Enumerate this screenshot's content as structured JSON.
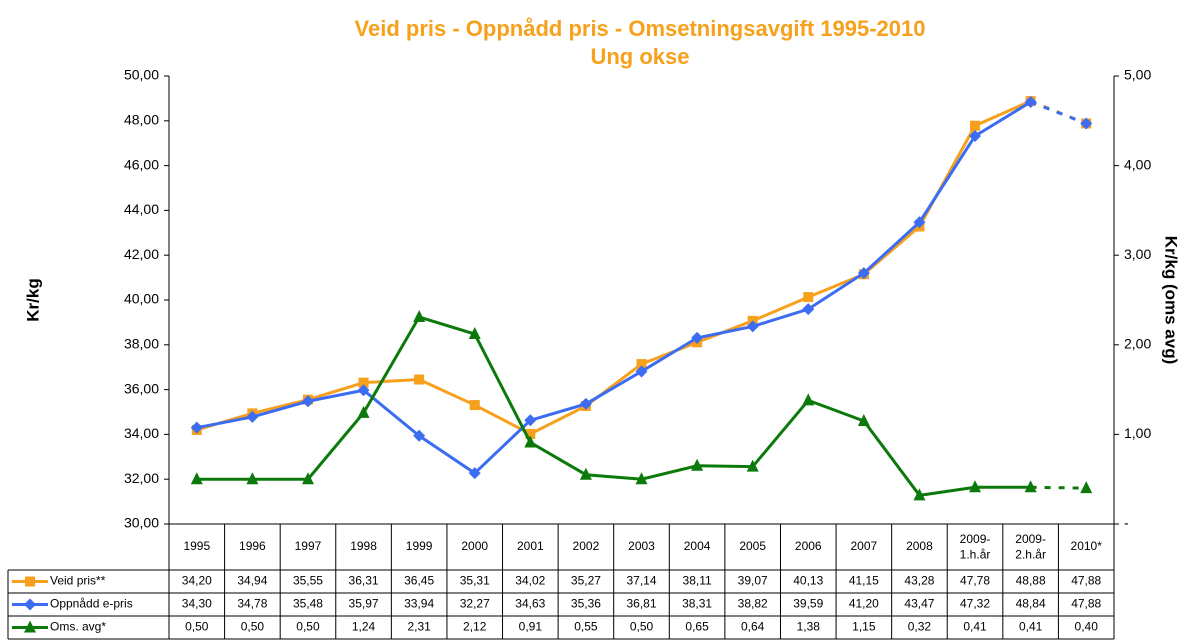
{
  "chart_data": {
    "type": "line",
    "title": "Veid pris - Oppnådd pris - Omsetningsavgift  1995-2010",
    "subtitle": "Ung okse",
    "y_label": "Kr/kg",
    "y2_label": "Kr/kg (oms avg)",
    "categories": [
      "1995",
      "1996",
      "1997",
      "1998",
      "1999",
      "2000",
      "2001",
      "2002",
      "2003",
      "2004",
      "2005",
      "2006",
      "2007",
      "2008",
      "2009-1.h.år",
      "2009-2.h.år",
      "2010*"
    ],
    "ylim": [
      30,
      50
    ],
    "yticks": [
      {
        "value": 30,
        "label": "30,00"
      },
      {
        "value": 32,
        "label": "32,00"
      },
      {
        "value": 34,
        "label": "34,00"
      },
      {
        "value": 36,
        "label": "36,00"
      },
      {
        "value": 38,
        "label": "38,00"
      },
      {
        "value": 40,
        "label": "40,00"
      },
      {
        "value": 42,
        "label": "42,00"
      },
      {
        "value": 44,
        "label": "44,00"
      },
      {
        "value": 46,
        "label": "46,00"
      },
      {
        "value": 48,
        "label": "48,00"
      },
      {
        "value": 50,
        "label": "50,00"
      }
    ],
    "y2lim": [
      0,
      5
    ],
    "y2ticks": [
      {
        "value": 0,
        "label": "-"
      },
      {
        "value": 1,
        "label": "1,00"
      },
      {
        "value": 2,
        "label": "2,00"
      },
      {
        "value": 3,
        "label": "3,00"
      },
      {
        "value": 4,
        "label": "4,00"
      },
      {
        "value": 5,
        "label": "5,00"
      }
    ],
    "grid": false,
    "legend": "bottom",
    "last_segment_style": "dashed",
    "series": [
      {
        "name": "Veid pris**",
        "color": "#f7a01c",
        "marker": "square",
        "values": [
          34.2,
          34.94,
          35.55,
          36.31,
          36.45,
          35.31,
          34.02,
          35.27,
          37.14,
          38.11,
          39.07,
          40.13,
          41.15,
          43.28,
          47.78,
          48.88,
          47.88
        ],
        "value_labels": [
          "34,20",
          "34,94",
          "35,55",
          "36,31",
          "36,45",
          "35,31",
          "34,02",
          "35,27",
          "37,14",
          "38,11",
          "39,07",
          "40,13",
          "41,15",
          "43,28",
          "47,78",
          "48,88",
          "47,88"
        ]
      },
      {
        "name": "Oppnådd e-pris",
        "color": "#3b6cf2",
        "marker": "diamond",
        "values": [
          34.3,
          34.78,
          35.48,
          35.97,
          33.94,
          32.27,
          34.63,
          35.36,
          36.81,
          38.31,
          38.82,
          39.59,
          41.2,
          43.47,
          47.32,
          48.84,
          47.88
        ],
        "value_labels": [
          "34,30",
          "34,78",
          "35,48",
          "35,97",
          "33,94",
          "32,27",
          "34,63",
          "35,36",
          "36,81",
          "38,31",
          "38,82",
          "39,59",
          "41,20",
          "43,47",
          "47,32",
          "48,84",
          "47,88"
        ]
      },
      {
        "name": "Oms. avg*",
        "color": "#0b7a0b",
        "marker": "triangle",
        "axis": "y2",
        "values": [
          0.5,
          0.5,
          0.5,
          1.24,
          2.31,
          2.12,
          0.91,
          0.55,
          0.5,
          0.65,
          0.64,
          1.38,
          1.15,
          0.32,
          0.41,
          0.41,
          0.4
        ],
        "value_labels": [
          "0,50",
          "0,50",
          "0,50",
          "1,24",
          "2,31",
          "2,12",
          "0,91",
          "0,55",
          "0,50",
          "0,65",
          "0,64",
          "1,38",
          "1,15",
          "0,32",
          "0,41",
          "0,41",
          "0,40"
        ]
      }
    ]
  }
}
